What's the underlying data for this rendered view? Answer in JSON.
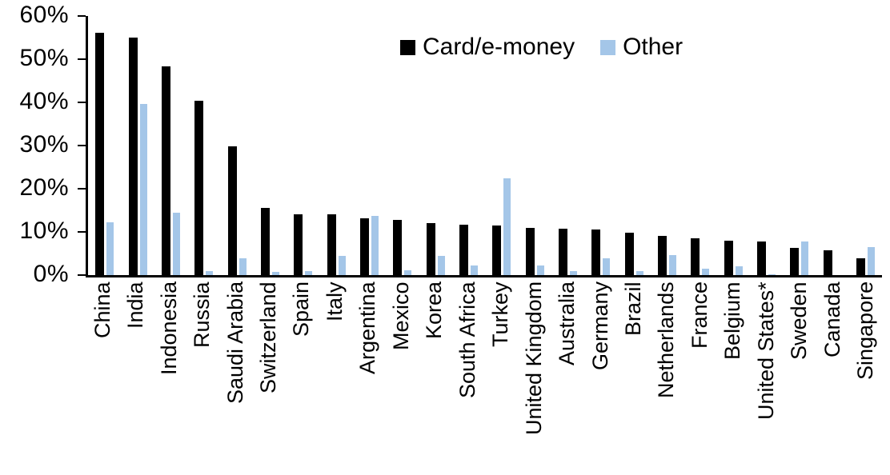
{
  "chart_data": {
    "type": "bar",
    "title": "",
    "xlabel": "",
    "ylabel": "",
    "grid": false,
    "legend_position": "top-center",
    "y_axis": {
      "min": 0,
      "max": 60,
      "step": 10,
      "tick_labels": [
        "0%",
        "10%",
        "20%",
        "30%",
        "40%",
        "50%",
        "60%"
      ]
    },
    "categories": [
      "China",
      "India",
      "Indonesia",
      "Russia",
      "Saudi Arabia",
      "Switzerland",
      "Spain",
      "Italy",
      "Argentina",
      "Mexico",
      "Korea",
      "South Africa",
      "Turkey",
      "United Kingdom",
      "Australia",
      "Germany",
      "Brazil",
      "Netherlands",
      "France",
      "Belgium",
      "United States*",
      "Sweden",
      "Canada",
      "Singapore"
    ],
    "series": [
      {
        "name": "Card/e-money",
        "color": "#000000",
        "values": [
          56.2,
          55.0,
          48.3,
          40.4,
          29.8,
          15.5,
          14.1,
          14.0,
          13.2,
          12.7,
          12.0,
          11.6,
          11.5,
          11.0,
          10.7,
          10.5,
          9.8,
          9.1,
          8.6,
          8.0,
          7.7,
          6.3,
          5.8,
          3.8
        ]
      },
      {
        "name": "Other",
        "color": "#A4C6E8",
        "values": [
          12.3,
          39.7,
          14.5,
          1.0,
          3.8,
          0.8,
          1.0,
          4.5,
          13.7,
          1.2,
          4.5,
          2.3,
          22.4,
          2.3,
          1.0,
          3.9,
          1.0,
          4.7,
          1.5,
          2.0,
          0.2,
          7.8,
          0.0,
          6.5
        ]
      }
    ]
  }
}
